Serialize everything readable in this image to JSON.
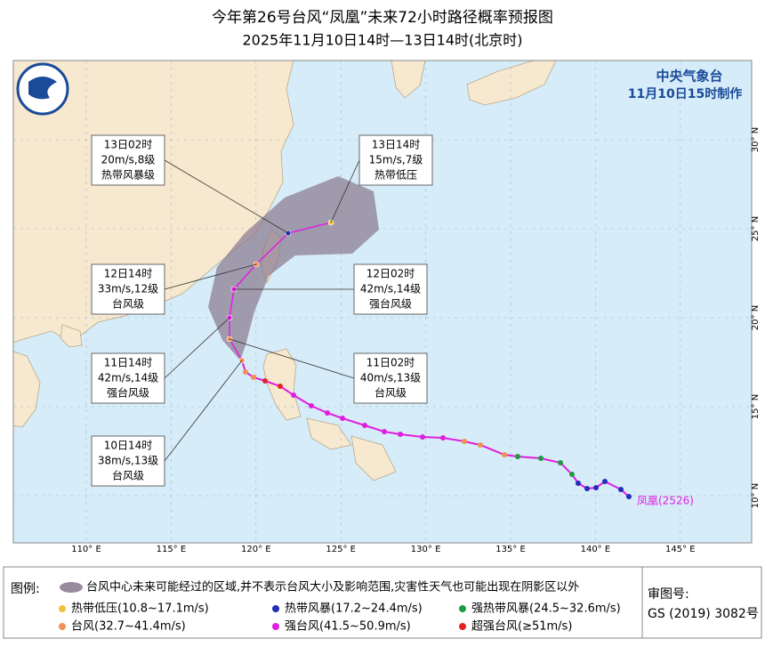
{
  "header": {
    "title": "今年第26号台风“凤凰”未来72小时路径概率预报图",
    "subtitle": "2025年11月10日14时—13日14时(北京时)"
  },
  "agency": {
    "name": "中央气象台",
    "issued": "11月10日15时制作"
  },
  "map": {
    "lon_labels": [
      "110° E",
      "115° E",
      "120° E",
      "125° E",
      "130° E",
      "135° E",
      "140° E",
      "145° E"
    ],
    "lat_labels": [
      "10° N",
      "15° N",
      "20° N",
      "25° N",
      "30° N"
    ],
    "storm_label": "凤凰(2526)"
  },
  "callouts": [
    {
      "time": "13日02时",
      "wind": "20m/s,8级",
      "class": "热带风暴级"
    },
    {
      "time": "13日14时",
      "wind": "15m/s,7级",
      "class": "热带低压"
    },
    {
      "time": "12日14时",
      "wind": "33m/s,12级",
      "class": "台风级"
    },
    {
      "time": "12日02时",
      "wind": "42m/s,14级",
      "class": "强台风级"
    },
    {
      "time": "11日14时",
      "wind": "42m/s,14级",
      "class": "强台风级"
    },
    {
      "time": "11日02时",
      "wind": "40m/s,13级",
      "class": "台风级"
    },
    {
      "time": "10日14时",
      "wind": "38m/s,13级",
      "class": "台风级"
    }
  ],
  "legend": {
    "title": "图例:",
    "cone": "台风中心未来可能经过的区域,并不表示台风大小及影响范围,灾害性天气也可能出现在阴影区以外",
    "items": [
      {
        "label": "热带低压(10.8~17.1m/s)",
        "color": "#f2c23a"
      },
      {
        "label": "热带风暴(17.2~24.4m/s)",
        "color": "#1f2fb8"
      },
      {
        "label": "强热带风暴(24.5~32.6m/s)",
        "color": "#1d9a45"
      },
      {
        "label": "台风(32.7~41.4m/s)",
        "color": "#f19050"
      },
      {
        "label": "强台风(41.5~50.9m/s)",
        "color": "#e01ee0"
      },
      {
        "label": "超强台风(≥51m/s)",
        "color": "#e02525"
      }
    ]
  },
  "approval": {
    "title": "审图号:",
    "code": "GS (2019) 3082号"
  }
}
